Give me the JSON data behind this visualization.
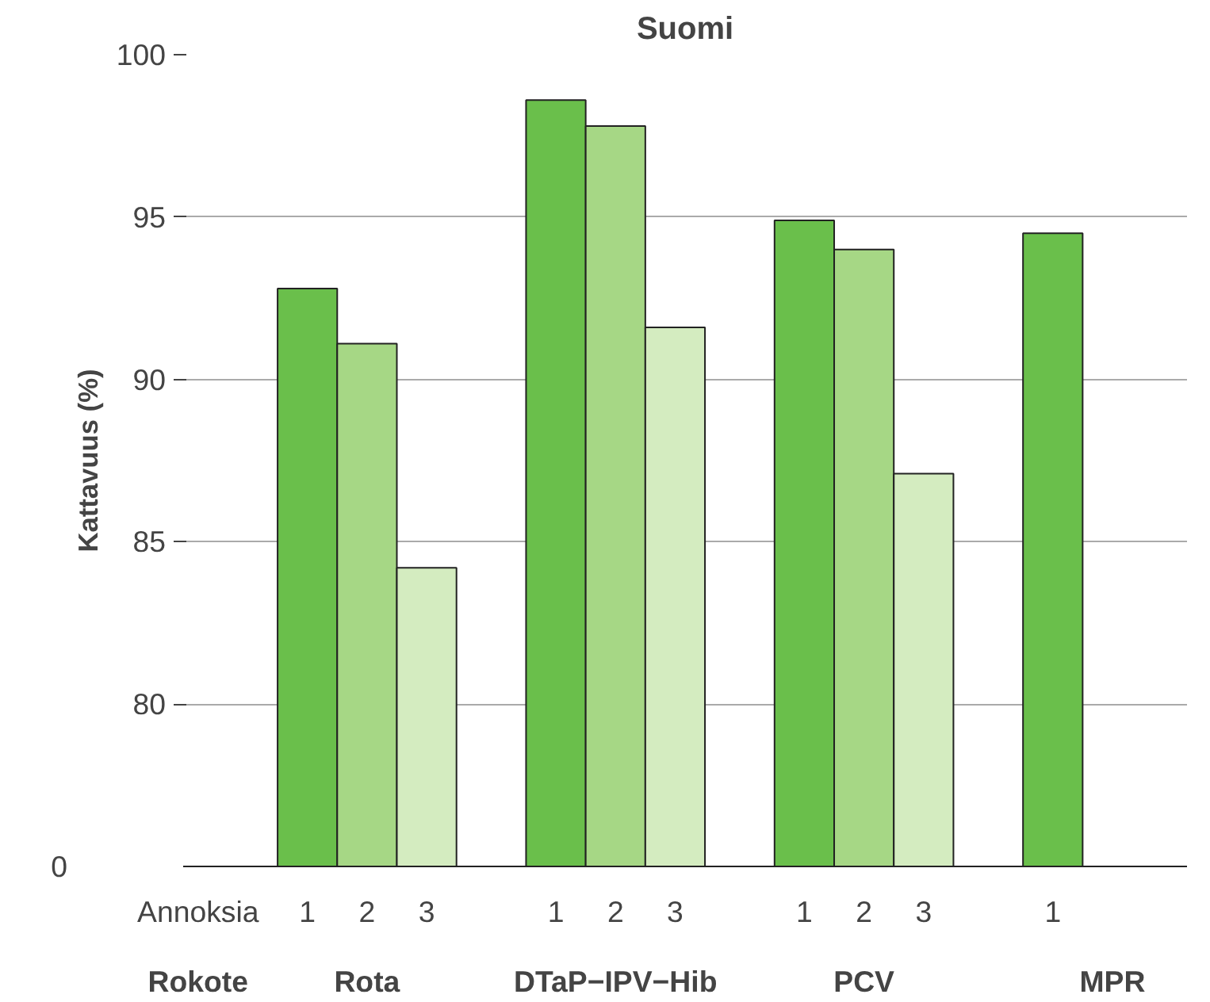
{
  "chart_data": {
    "type": "bar",
    "title": "Suomi",
    "ylabel": "Kattavuus (%)",
    "categories": [
      "Rota",
      "DTaP−IPV−Hib",
      "PCV",
      "MPR"
    ],
    "series": [
      {
        "name": "1",
        "color": "#6abf4b",
        "values": [
          92.8,
          98.6,
          94.9,
          94.5
        ]
      },
      {
        "name": "2",
        "color": "#a6d785",
        "values": [
          91.1,
          97.8,
          94.0,
          null
        ]
      },
      {
        "name": "3",
        "color": "#d4ecc0",
        "values": [
          84.2,
          91.6,
          87.1,
          null
        ]
      }
    ],
    "ylim": [
      75,
      100
    ],
    "yticks": [
      80,
      85,
      90,
      95,
      100
    ],
    "grid": "y",
    "annotations": [
      "Annoksia",
      "Rokote",
      "0"
    ]
  }
}
